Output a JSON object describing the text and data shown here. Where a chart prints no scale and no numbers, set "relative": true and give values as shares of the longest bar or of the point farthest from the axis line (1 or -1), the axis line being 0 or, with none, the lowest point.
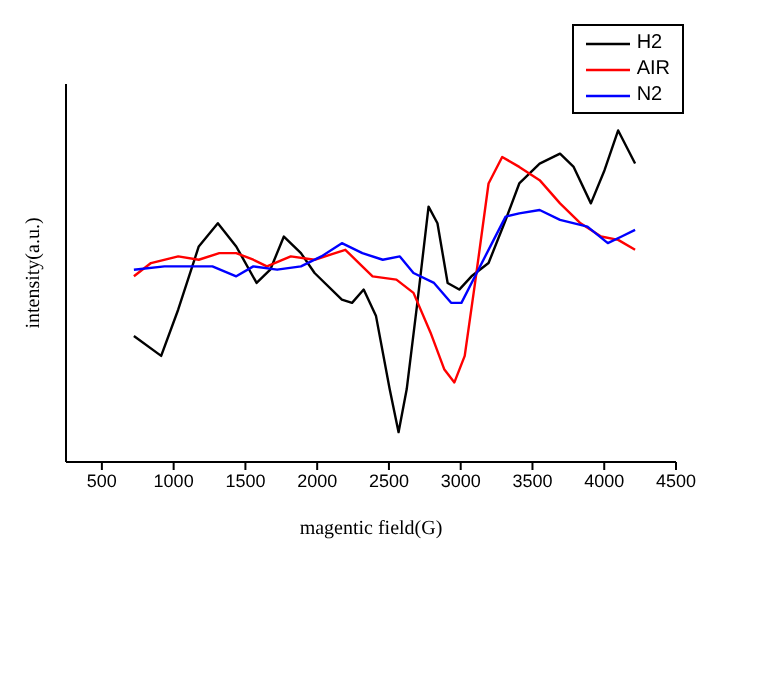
{
  "chart_data": {
    "type": "line",
    "relative": true,
    "xlabel": "magentic field(G)",
    "ylabel": "intensity(a.u.)",
    "xlim": [
      250,
      4500
    ],
    "xticks": [
      500,
      1000,
      1500,
      2000,
      2500,
      3000,
      3500,
      4000,
      4500
    ],
    "legend": "top right",
    "marker": "none",
    "line_style": "solid",
    "series": [
      {
        "name": "H2",
        "color": "#000000",
        "x": [
          723,
          913,
          1032,
          1175,
          1308,
          1436,
          1578,
          1673,
          1768,
          1887,
          1982,
          2172,
          2243,
          2324,
          2410,
          2505,
          2567,
          2624,
          2695,
          2776,
          2838,
          2909,
          2990,
          3075,
          3194,
          3313,
          3408,
          3550,
          3692,
          3787,
          3907,
          4002,
          4097,
          4215
        ],
        "values": [
          0.38,
          0.32,
          0.46,
          0.65,
          0.72,
          0.65,
          0.54,
          0.58,
          0.68,
          0.63,
          0.57,
          0.49,
          0.48,
          0.52,
          0.44,
          0.22,
          0.09,
          0.22,
          0.47,
          0.77,
          0.72,
          0.54,
          0.52,
          0.56,
          0.6,
          0.73,
          0.84,
          0.9,
          0.93,
          0.89,
          0.78,
          0.88,
          1,
          0.9
        ]
      },
      {
        "name": "AIR",
        "color": "#ff0000",
        "x": [
          723,
          842,
          1032,
          1175,
          1318,
          1436,
          1555,
          1650,
          1816,
          1982,
          2196,
          2291,
          2386,
          2552,
          2671,
          2790,
          2885,
          2956,
          3028,
          3100,
          3194,
          3289,
          3408,
          3550,
          3692,
          3835,
          3978,
          4097,
          4215
        ],
        "values": [
          0.56,
          0.6,
          0.62,
          0.61,
          0.63,
          0.63,
          0.61,
          0.59,
          0.62,
          0.61,
          0.64,
          0.6,
          0.56,
          0.55,
          0.51,
          0.39,
          0.28,
          0.24,
          0.32,
          0.54,
          0.84,
          0.92,
          0.89,
          0.85,
          0.78,
          0.72,
          0.68,
          0.67,
          0.64
        ]
      },
      {
        "name": "N2",
        "color": "#0000ff",
        "x": [
          723,
          936,
          1079,
          1270,
          1436,
          1555,
          1721,
          1887,
          2029,
          2172,
          2315,
          2457,
          2576,
          2671,
          2814,
          2933,
          3005,
          3123,
          3218,
          3313,
          3408,
          3550,
          3692,
          3883,
          4025,
          4121,
          4215
        ],
        "values": [
          0.58,
          0.59,
          0.59,
          0.59,
          0.56,
          0.59,
          0.58,
          0.59,
          0.62,
          0.66,
          0.63,
          0.61,
          0.62,
          0.57,
          0.54,
          0.48,
          0.48,
          0.58,
          0.66,
          0.74,
          0.75,
          0.76,
          0.73,
          0.71,
          0.66,
          0.68,
          0.7
        ]
      }
    ]
  }
}
